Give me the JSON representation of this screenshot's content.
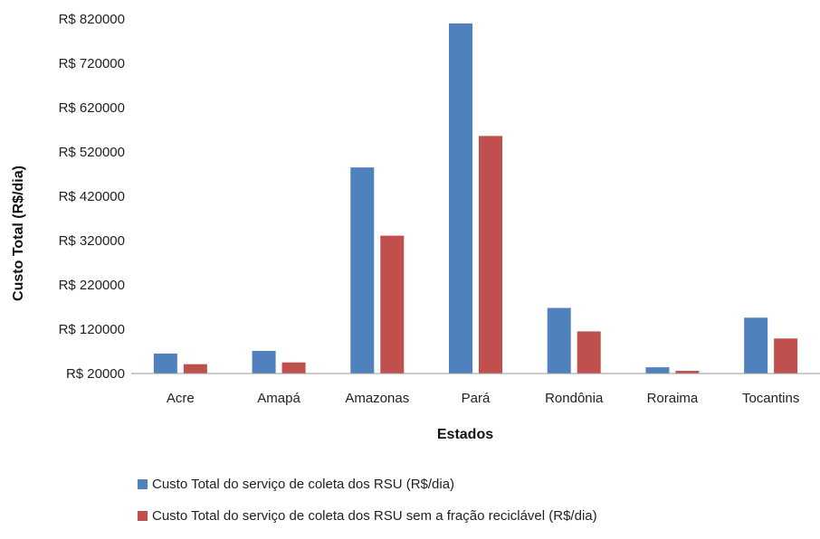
{
  "chart_data": {
    "type": "bar",
    "categories": [
      "Acre",
      "Amapá",
      "Amazonas",
      "Pará",
      "Rondônia",
      "Roraima",
      "Tocantins"
    ],
    "series": [
      {
        "name": "Custo Total do serviço de coleta dos RSU (R$/dia)",
        "color": "#4F81BD",
        "values": [
          65000,
          71000,
          485000,
          810000,
          168000,
          34000,
          146000
        ]
      },
      {
        "name": "Custo Total do serviço de coleta dos RSU sem a fração reciclável (R$/dia)",
        "color": "#C0504D",
        "values": [
          41000,
          45000,
          331000,
          556000,
          115000,
          26000,
          99000
        ]
      }
    ],
    "yticks": [
      "R$ 20000",
      "R$ 120000",
      "R$ 220000",
      "R$ 320000",
      "R$ 420000",
      "R$ 520000",
      "R$ 620000",
      "R$ 720000",
      "R$ 820000"
    ],
    "ylim": [
      20000,
      820000
    ],
    "xlabel": "Estados",
    "ylabel": "Custo Total (R$/dia)",
    "grid": false,
    "legend_position": "bottom"
  }
}
